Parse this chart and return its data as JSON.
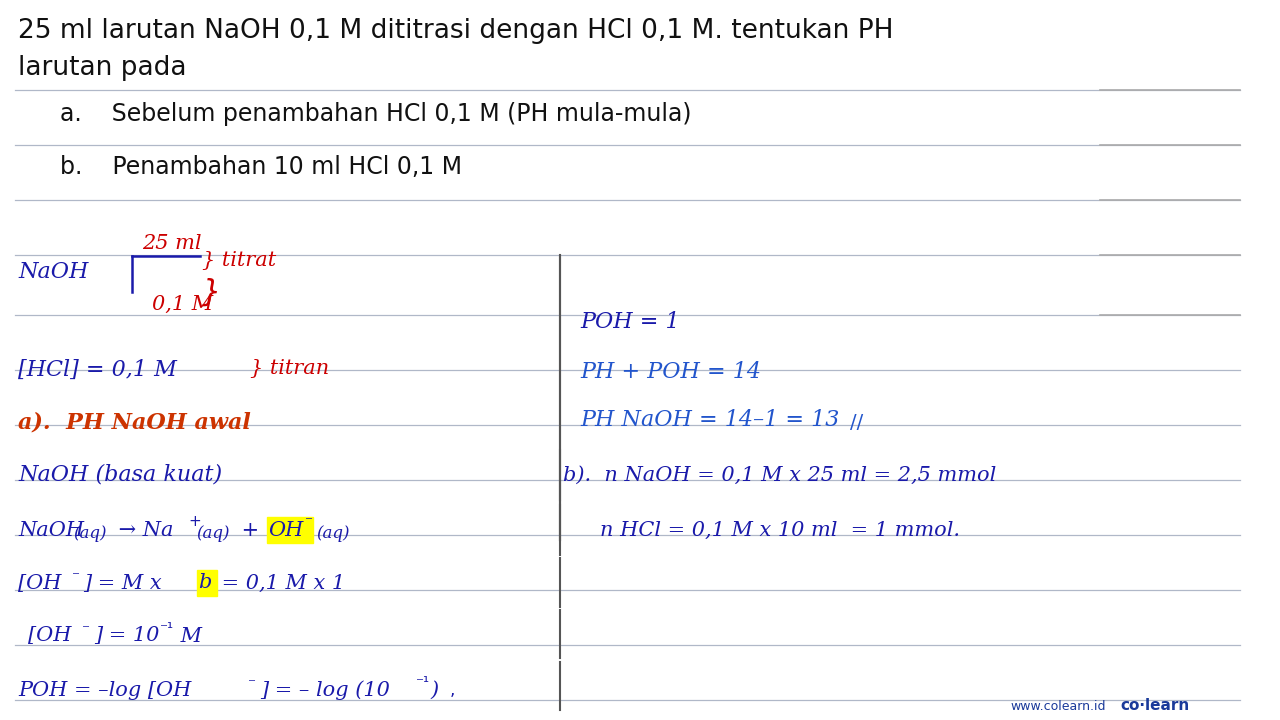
{
  "bg_color": "#ffffff",
  "title_line1": "25 ml larutan NaOH 0,1 M dititrasi dengan HCl 0,1 M. tentukan PH",
  "title_line2": "larutan pada",
  "title_color": "#111111",
  "title_fs": 19,
  "sub_a": "a.    Sebelum penambahan HCl 0,1 M (PH mula-mula)",
  "sub_b": "b.    Penambahan 10 ml HCl 0,1 M",
  "sub_color": "#111111",
  "sub_fs": 17,
  "line_color": "#b0b8c8",
  "line_color2": "#999999",
  "blue_dark": "#1a1aaa",
  "blue_mid": "#2255cc",
  "red_dark": "#cc0000",
  "red_text": "#cc3300",
  "yellow": "#ffff00",
  "watermark_color": "#1a3a9a",
  "divider_color": "#555555",
  "right_line_color": "#aaaaaa"
}
